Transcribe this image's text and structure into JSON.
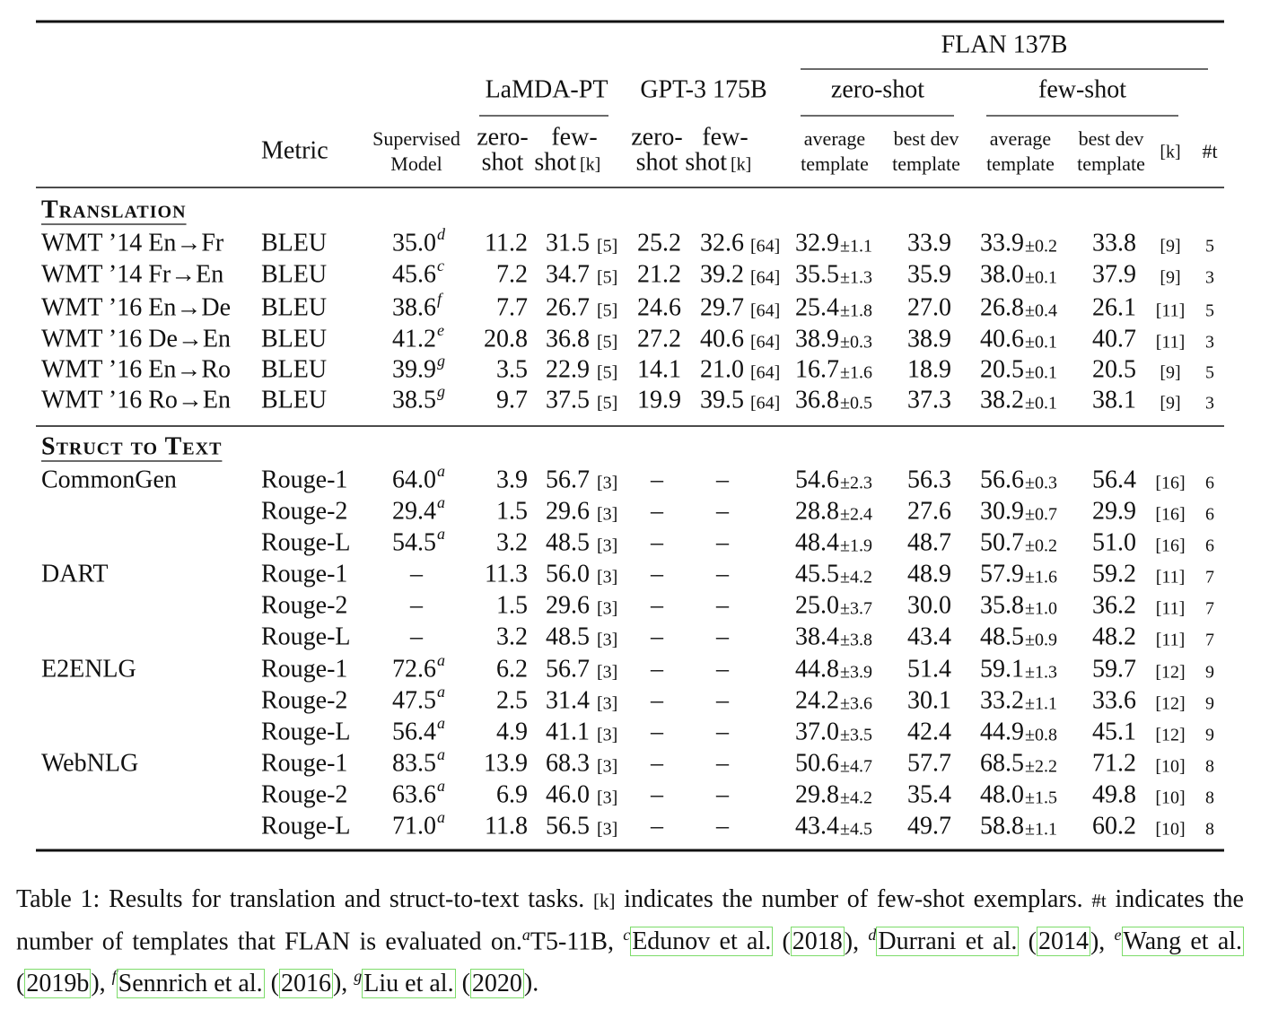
{
  "header": {
    "flan": "FLAN 137B",
    "models": [
      "LaMDA-PT",
      "GPT-3 175B"
    ],
    "settings": [
      "zero-shot",
      "few-shot"
    ],
    "metric": "Metric",
    "supervised": [
      "Supervised",
      "Model"
    ],
    "shot": [
      [
        "zero-",
        "shot"
      ],
      [
        "few-",
        "shot"
      ],
      [
        "zero-",
        "shot"
      ],
      [
        "few-",
        "shot"
      ]
    ],
    "k_label": "[k]",
    "templates": [
      [
        "average",
        "template"
      ],
      [
        "best dev",
        "template"
      ],
      [
        "average",
        "template"
      ],
      [
        "best dev",
        "template"
      ]
    ],
    "t_label": "#t"
  },
  "sections": [
    {
      "title": "Translation",
      "rows": [
        [
          "WMT ’14 En→Fr",
          "BLEU",
          "35.0",
          "d",
          "11.2",
          "31.5",
          "[5]",
          "25.2",
          "32.6",
          "[64]",
          "32.9",
          "±1.1",
          "33.9",
          "33.9",
          "±0.2",
          "33.8",
          "[9]",
          "5"
        ],
        [
          "WMT ’14 Fr→En",
          "BLEU",
          "45.6",
          "c",
          "7.2",
          "34.7",
          "[5]",
          "21.2",
          "39.2",
          "[64]",
          "35.5",
          "±1.3",
          "35.9",
          "38.0",
          "±0.1",
          "37.9",
          "[9]",
          "3"
        ],
        [
          "WMT ’16 En→De",
          "BLEU",
          "38.6",
          "f",
          "7.7",
          "26.7",
          "[5]",
          "24.6",
          "29.7",
          "[64]",
          "25.4",
          "±1.8",
          "27.0",
          "26.8",
          "±0.4",
          "26.1",
          "[11]",
          "5"
        ],
        [
          "WMT ’16 De→En",
          "BLEU",
          "41.2",
          "e",
          "20.8",
          "36.8",
          "[5]",
          "27.2",
          "40.6",
          "[64]",
          "38.9",
          "±0.3",
          "38.9",
          "40.6",
          "±0.1",
          "40.7",
          "[11]",
          "3"
        ],
        [
          "WMT ’16 En→Ro",
          "BLEU",
          "39.9",
          "g",
          "3.5",
          "22.9",
          "[5]",
          "14.1",
          "21.0",
          "[64]",
          "16.7",
          "±1.6",
          "18.9",
          "20.5",
          "±0.1",
          "20.5",
          "[9]",
          "5"
        ],
        [
          "WMT ’16 Ro→En",
          "BLEU",
          "38.5",
          "g",
          "9.7",
          "37.5",
          "[5]",
          "19.9",
          "39.5",
          "[64]",
          "36.8",
          "±0.5",
          "37.3",
          "38.2",
          "±0.1",
          "38.1",
          "[9]",
          "3"
        ]
      ]
    },
    {
      "title": "Struct to Text",
      "rows": [
        [
          "CommonGen",
          "Rouge-1",
          "64.0",
          "a",
          "3.9",
          "56.7",
          "[3]",
          "–",
          "–",
          null,
          "54.6",
          "±2.3",
          "56.3",
          "56.6",
          "±0.3",
          "56.4",
          "[16]",
          "6"
        ],
        [
          null,
          "Rouge-2",
          "29.4",
          "a",
          "1.5",
          "29.6",
          "[3]",
          "–",
          "–",
          null,
          "28.8",
          "±2.4",
          "27.6",
          "30.9",
          "±0.7",
          "29.9",
          "[16]",
          "6"
        ],
        [
          null,
          "Rouge-L",
          "54.5",
          "a",
          "3.2",
          "48.5",
          "[3]",
          "–",
          "–",
          null,
          "48.4",
          "±1.9",
          "48.7",
          "50.7",
          "±0.2",
          "51.0",
          "[16]",
          "6"
        ],
        [
          "DART",
          "Rouge-1",
          "–",
          null,
          "11.3",
          "56.0",
          "[3]",
          "–",
          "–",
          null,
          "45.5",
          "±4.2",
          "48.9",
          "57.9",
          "±1.6",
          "59.2",
          "[11]",
          "7"
        ],
        [
          null,
          "Rouge-2",
          "–",
          null,
          "1.5",
          "29.6",
          "[3]",
          "–",
          "–",
          null,
          "25.0",
          "±3.7",
          "30.0",
          "35.8",
          "±1.0",
          "36.2",
          "[11]",
          "7"
        ],
        [
          null,
          "Rouge-L",
          "–",
          null,
          "3.2",
          "48.5",
          "[3]",
          "–",
          "–",
          null,
          "38.4",
          "±3.8",
          "43.4",
          "48.5",
          "±0.9",
          "48.2",
          "[11]",
          "7"
        ],
        [
          "E2ENLG",
          "Rouge-1",
          "72.6",
          "a",
          "6.2",
          "56.7",
          "[3]",
          "–",
          "–",
          null,
          "44.8",
          "±3.9",
          "51.4",
          "59.1",
          "±1.3",
          "59.7",
          "[12]",
          "9"
        ],
        [
          null,
          "Rouge-2",
          "47.5",
          "a",
          "2.5",
          "31.4",
          "[3]",
          "–",
          "–",
          null,
          "24.2",
          "±3.6",
          "30.1",
          "33.2",
          "±1.1",
          "33.6",
          "[12]",
          "9"
        ],
        [
          null,
          "Rouge-L",
          "56.4",
          "a",
          "4.9",
          "41.1",
          "[3]",
          "–",
          "–",
          null,
          "37.0",
          "±3.5",
          "42.4",
          "44.9",
          "±0.8",
          "45.1",
          "[12]",
          "9"
        ],
        [
          "WebNLG",
          "Rouge-1",
          "83.5",
          "a",
          "13.9",
          "68.3",
          "[3]",
          "–",
          "–",
          null,
          "50.6",
          "±4.7",
          "57.7",
          "68.5",
          "±2.2",
          "71.2",
          "[10]",
          "8"
        ],
        [
          null,
          "Rouge-2",
          "63.6",
          "a",
          "6.9",
          "46.0",
          "[3]",
          "–",
          "–",
          null,
          "29.8",
          "±4.2",
          "35.4",
          "48.0",
          "±1.5",
          "49.8",
          "[10]",
          "8"
        ],
        [
          null,
          "Rouge-L",
          "71.0",
          "a",
          "11.8",
          "56.5",
          "[3]",
          "–",
          "–",
          null,
          "43.4",
          "±4.5",
          "49.7",
          "58.8",
          "±1.1",
          "60.2",
          "[10]",
          "8"
        ]
      ]
    }
  ],
  "caption": [
    {
      "text": "Table 1:"
    },
    {
      "text": "  Results for translation and struct-to-text tasks. "
    },
    {
      "text": "[k]",
      "mono": true
    },
    {
      "text": " indicates the number of few-shot exemplars. "
    },
    {
      "text": "#t",
      "mono": true
    },
    {
      "text": " indicates the number of templates that FLAN is evaluated on."
    },
    {
      "text": "a",
      "sup": true
    },
    {
      "text": "T5-11B, "
    },
    {
      "text": "c",
      "sup": true
    },
    {
      "text": "Edunov et al.",
      "link": true
    },
    {
      "text": " ("
    },
    {
      "text": "2018",
      "link": true
    },
    {
      "text": "), "
    },
    {
      "text": "d",
      "sup": true
    },
    {
      "text": "Durrani et al.",
      "link": true
    },
    {
      "text": " ("
    },
    {
      "text": "2014",
      "link": true
    },
    {
      "text": "), "
    },
    {
      "text": "e",
      "sup": true
    },
    {
      "text": "Wang et al.",
      "link": true
    },
    {
      "text": " ("
    },
    {
      "text": "2019b",
      "link": true
    },
    {
      "text": "), "
    },
    {
      "text": "f",
      "sup": true
    },
    {
      "text": "Sennrich et al.",
      "link": true
    },
    {
      "text": " ("
    },
    {
      "text": "2016",
      "link": true
    },
    {
      "text": "), "
    },
    {
      "text": "g",
      "sup": true
    },
    {
      "text": "Liu et al.",
      "link": true
    },
    {
      "text": " ("
    },
    {
      "text": "2020",
      "link": true
    },
    {
      "text": ")."
    }
  ]
}
